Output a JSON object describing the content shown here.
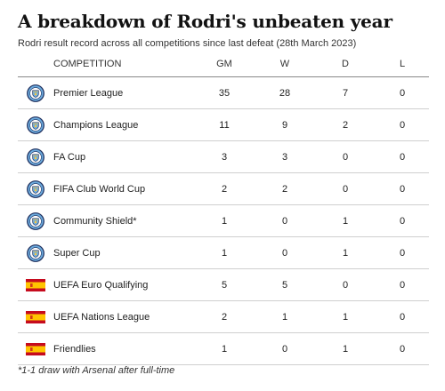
{
  "header": {
    "title": "A breakdown of Rodri's unbeaten year",
    "subtitle": "Rodri result record across all competitions since last defeat (28th March 2023)"
  },
  "columns": {
    "competition": "COMPETITION",
    "gm": "GM",
    "w": "W",
    "d": "D",
    "l": "L"
  },
  "rows": [
    {
      "icon": "manchester-city-crest",
      "competition": "Premier League",
      "gm": "35",
      "w": "28",
      "d": "7",
      "l": "0"
    },
    {
      "icon": "manchester-city-crest",
      "competition": "Champions League",
      "gm": "11",
      "w": "9",
      "d": "2",
      "l": "0"
    },
    {
      "icon": "manchester-city-crest",
      "competition": "FA Cup",
      "gm": "3",
      "w": "3",
      "d": "0",
      "l": "0"
    },
    {
      "icon": "manchester-city-crest",
      "competition": "FIFA Club World Cup",
      "gm": "2",
      "w": "2",
      "d": "0",
      "l": "0"
    },
    {
      "icon": "manchester-city-crest",
      "competition": "Community Shield*",
      "gm": "1",
      "w": "0",
      "d": "1",
      "l": "0"
    },
    {
      "icon": "manchester-city-crest",
      "competition": "Super Cup",
      "gm": "1",
      "w": "0",
      "d": "1",
      "l": "0"
    },
    {
      "icon": "spain-flag",
      "competition": "UEFA Euro Qualifying",
      "gm": "5",
      "w": "5",
      "d": "0",
      "l": "0"
    },
    {
      "icon": "spain-flag",
      "competition": "UEFA Nations League",
      "gm": "2",
      "w": "1",
      "d": "1",
      "l": "0"
    },
    {
      "icon": "spain-flag",
      "competition": "Friendlies",
      "gm": "1",
      "w": "0",
      "d": "1",
      "l": "0"
    }
  ],
  "footnote": "*1-1 draw with Arsenal after full-time",
  "colors": {
    "city_blue": "#6cabdd",
    "city_navy": "#1c2c5b",
    "city_gold": "#f7c744",
    "spain_red": "#c60b1e",
    "spain_yellow": "#ffc400"
  }
}
